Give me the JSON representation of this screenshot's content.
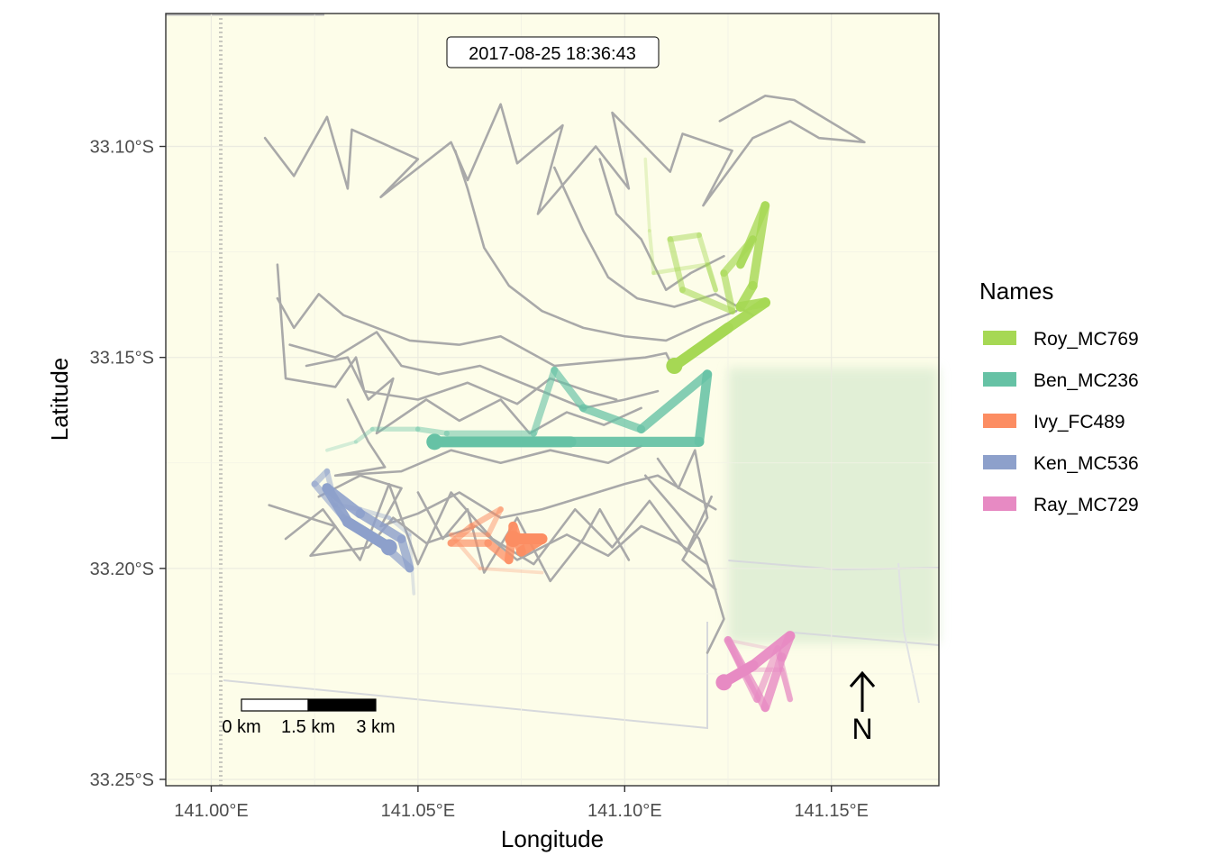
{
  "chart_data": {
    "type": "map-tracks",
    "title": "",
    "timestamp": "2017-08-25 18:36:43",
    "xlabel": "Longitude",
    "ylabel": "Latitude",
    "xlim": [
      140.989,
      141.176
    ],
    "ylim": [
      -33.2515,
      -33.0685
    ],
    "x_ticks": [
      {
        "value": 141.0,
        "label": "141.00°E"
      },
      {
        "value": 141.05,
        "label": "141.05°E"
      },
      {
        "value": 141.1,
        "label": "141.10°E"
      },
      {
        "value": 141.15,
        "label": "141.15°E"
      }
    ],
    "y_ticks": [
      {
        "value": -33.1,
        "label": "33.10°S"
      },
      {
        "value": -33.15,
        "label": "33.15°S"
      },
      {
        "value": -33.2,
        "label": "33.20°S"
      },
      {
        "value": -33.25,
        "label": "33.25°S"
      }
    ],
    "grid": true,
    "legend": {
      "title": "Names",
      "placement": "right",
      "items": [
        {
          "name": "Roy_MC769",
          "color": "#a6d854"
        },
        {
          "name": "Ben_MC236",
          "color": "#66c2a5"
        },
        {
          "name": "Ivy_FC489",
          "color": "#fc8d62"
        },
        {
          "name": "Ken_MC536",
          "color": "#8da0cb"
        },
        {
          "name": "Ray_MC729",
          "color": "#e78ac3"
        }
      ]
    },
    "scalebar": {
      "labels": [
        "0 km",
        "1.5 km",
        "3 km"
      ]
    },
    "north_arrow": "N",
    "background_color": "#fdfde9",
    "trail_color": "#a9a9a9",
    "trails": [
      [
        [
          141.013,
          -33.098
        ],
        [
          141.02,
          -33.107
        ],
        [
          141.028,
          -33.093
        ],
        [
          141.033,
          -33.11
        ],
        [
          141.034,
          -33.096
        ],
        [
          141.05,
          -33.103
        ],
        [
          141.041,
          -33.112
        ],
        [
          141.058,
          -33.099
        ],
        [
          141.062,
          -33.108
        ],
        [
          141.07,
          -33.09
        ],
        [
          141.074,
          -33.104
        ],
        [
          141.085,
          -33.095
        ],
        [
          141.079,
          -33.116
        ],
        [
          141.093,
          -33.1
        ],
        [
          141.101,
          -33.11
        ],
        [
          141.097,
          -33.092
        ],
        [
          141.111,
          -33.106
        ],
        [
          141.114,
          -33.097
        ],
        [
          141.126,
          -33.101
        ],
        [
          141.119,
          -33.114
        ],
        [
          141.131,
          -33.098
        ],
        [
          141.14,
          -33.094
        ],
        [
          141.147,
          -33.098
        ],
        [
          141.158,
          -33.099
        ],
        [
          141.141,
          -33.089
        ],
        [
          141.134,
          -33.088
        ],
        [
          141.123,
          -33.094
        ]
      ],
      [
        [
          141.016,
          -33.136
        ],
        [
          141.02,
          -33.143
        ],
        [
          141.026,
          -33.135
        ],
        [
          141.032,
          -33.14
        ],
        [
          141.048,
          -33.146
        ],
        [
          141.06,
          -33.147
        ],
        [
          141.07,
          -33.145
        ],
        [
          141.083,
          -33.152
        ],
        [
          141.094,
          -33.151
        ],
        [
          141.105,
          -33.15
        ],
        [
          141.11,
          -33.149
        ],
        [
          141.112,
          -33.153
        ]
      ],
      [
        [
          141.019,
          -33.147
        ],
        [
          141.03,
          -33.15
        ],
        [
          141.04,
          -33.144
        ],
        [
          141.046,
          -33.152
        ],
        [
          141.055,
          -33.154
        ],
        [
          141.065,
          -33.152
        ],
        [
          141.08,
          -33.158
        ],
        [
          141.09,
          -33.162
        ],
        [
          141.1,
          -33.16
        ],
        [
          141.108,
          -33.158
        ]
      ],
      [
        [
          141.023,
          -33.152
        ],
        [
          141.033,
          -33.15
        ],
        [
          141.038,
          -33.16
        ],
        [
          141.044,
          -33.155
        ],
        [
          141.04,
          -33.168
        ],
        [
          141.052,
          -33.16
        ],
        [
          141.06,
          -33.165
        ],
        [
          141.07,
          -33.16
        ],
        [
          141.077,
          -33.168
        ],
        [
          141.086,
          -33.163
        ],
        [
          141.095,
          -33.166
        ],
        [
          141.104,
          -33.162
        ]
      ],
      [
        [
          141.016,
          -33.128
        ],
        [
          141.018,
          -33.155
        ],
        [
          141.03,
          -33.157
        ],
        [
          141.035,
          -33.15
        ],
        [
          141.037,
          -33.158
        ],
        [
          141.05,
          -33.16
        ],
        [
          141.062,
          -33.156
        ],
        [
          141.074,
          -33.161
        ],
        [
          141.082,
          -33.155
        ],
        [
          141.091,
          -33.158
        ],
        [
          141.098,
          -33.16
        ]
      ],
      [
        [
          141.059,
          -33.101
        ],
        [
          141.062,
          -33.11
        ],
        [
          141.066,
          -33.124
        ],
        [
          141.072,
          -33.133
        ],
        [
          141.08,
          -33.139
        ],
        [
          141.09,
          -33.143
        ],
        [
          141.1,
          -33.145
        ],
        [
          141.11,
          -33.146
        ],
        [
          141.119,
          -33.142
        ],
        [
          141.127,
          -33.139
        ]
      ],
      [
        [
          141.083,
          -33.105
        ],
        [
          141.09,
          -33.12
        ],
        [
          141.096,
          -33.131
        ],
        [
          141.103,
          -33.136
        ],
        [
          141.112,
          -33.138
        ],
        [
          141.122,
          -33.135
        ],
        [
          141.131,
          -33.14
        ]
      ],
      [
        [
          141.094,
          -33.103
        ],
        [
          141.098,
          -33.116
        ],
        [
          141.104,
          -33.122
        ],
        [
          141.11,
          -33.134
        ],
        [
          141.116,
          -33.13
        ],
        [
          141.124,
          -33.126
        ]
      ],
      [
        [
          141.026,
          -33.183
        ],
        [
          141.036,
          -33.178
        ],
        [
          141.046,
          -33.181
        ],
        [
          141.041,
          -33.19
        ],
        [
          141.05,
          -33.187
        ],
        [
          141.06,
          -33.182
        ],
        [
          141.07,
          -33.188
        ],
        [
          141.08,
          -33.186
        ],
        [
          141.09,
          -33.183
        ],
        [
          141.1,
          -33.18
        ],
        [
          141.108,
          -33.178
        ],
        [
          141.115,
          -33.182
        ],
        [
          141.122,
          -33.186
        ]
      ],
      [
        [
          141.014,
          -33.185
        ],
        [
          141.03,
          -33.19
        ],
        [
          141.024,
          -33.197
        ],
        [
          141.038,
          -33.195
        ],
        [
          141.044,
          -33.188
        ],
        [
          141.052,
          -33.194
        ],
        [
          141.064,
          -33.19
        ],
        [
          141.074,
          -33.198
        ],
        [
          141.086,
          -33.192
        ],
        [
          141.096,
          -33.197
        ],
        [
          141.104,
          -33.19
        ],
        [
          141.113,
          -33.194
        ],
        [
          141.12,
          -33.199
        ]
      ],
      [
        [
          141.018,
          -33.193
        ],
        [
          141.027,
          -33.186
        ],
        [
          141.036,
          -33.198
        ],
        [
          141.043,
          -33.18
        ],
        [
          141.05,
          -33.199
        ],
        [
          141.058,
          -33.182
        ],
        [
          141.068,
          -33.193
        ],
        [
          141.078,
          -33.199
        ],
        [
          141.088,
          -33.186
        ],
        [
          141.097,
          -33.195
        ],
        [
          141.106,
          -33.184
        ],
        [
          141.115,
          -33.196
        ],
        [
          141.121,
          -33.183
        ]
      ],
      [
        [
          141.105,
          -33.178
        ],
        [
          141.112,
          -33.186
        ],
        [
          141.118,
          -33.193
        ],
        [
          141.121,
          -33.202
        ],
        [
          141.124,
          -33.212
        ],
        [
          141.12,
          -33.22
        ]
      ],
      [
        [
          141.108,
          -33.174
        ],
        [
          141.113,
          -33.181
        ],
        [
          141.117,
          -33.172
        ],
        [
          141.12,
          -33.188
        ],
        [
          141.114,
          -33.198
        ],
        [
          141.122,
          -33.205
        ]
      ],
      [
        [
          141.033,
          -33.16
        ],
        [
          141.038,
          -33.17
        ],
        [
          141.042,
          -33.176
        ],
        [
          141.03,
          -33.178
        ],
        [
          141.046,
          -33.177
        ],
        [
          141.058,
          -33.172
        ],
        [
          141.07,
          -33.175
        ],
        [
          141.082,
          -33.172
        ],
        [
          141.096,
          -33.175
        ],
        [
          141.104,
          -33.171
        ]
      ],
      [
        [
          141.05,
          -33.182
        ],
        [
          141.056,
          -33.193
        ],
        [
          141.062,
          -33.186
        ],
        [
          141.066,
          -33.201
        ],
        [
          141.074,
          -33.188
        ],
        [
          141.082,
          -33.203
        ],
        [
          141.09,
          -33.193
        ],
        [
          141.094,
          -33.186
        ],
        [
          141.101,
          -33.198
        ]
      ]
    ],
    "tracks": [
      {
        "name": "Roy_MC769",
        "color": "#a6d854",
        "points": [
          [
            141.105,
            -33.103
          ],
          [
            141.106,
            -33.12
          ],
          [
            141.107,
            -33.13
          ],
          [
            141.12,
            -33.128
          ],
          [
            141.122,
            -33.134
          ],
          [
            141.118,
            -33.121
          ],
          [
            141.111,
            -33.122
          ],
          [
            141.114,
            -33.134
          ],
          [
            141.126,
            -33.139
          ],
          [
            141.124,
            -33.13
          ],
          [
            141.131,
            -33.122
          ],
          [
            141.128,
            -33.128
          ],
          [
            141.134,
            -33.114
          ],
          [
            141.131,
            -33.133
          ],
          [
            141.128,
            -33.138
          ],
          [
            141.134,
            -33.137
          ],
          [
            141.125,
            -33.143
          ],
          [
            141.112,
            -33.152
          ]
        ]
      },
      {
        "name": "Ben_MC236",
        "color": "#66c2a5",
        "points": [
          [
            141.028,
            -33.172
          ],
          [
            141.035,
            -33.17
          ],
          [
            141.039,
            -33.167
          ],
          [
            141.05,
            -33.167
          ],
          [
            141.057,
            -33.168
          ],
          [
            141.078,
            -33.168
          ],
          [
            141.083,
            -33.153
          ],
          [
            141.09,
            -33.162
          ],
          [
            141.104,
            -33.167
          ],
          [
            141.12,
            -33.154
          ],
          [
            141.118,
            -33.17
          ],
          [
            141.087,
            -33.17
          ],
          [
            141.054,
            -33.17
          ]
        ]
      },
      {
        "name": "Ivy_FC489",
        "color": "#fc8d62",
        "points": [
          [
            141.08,
            -33.201
          ],
          [
            141.065,
            -33.2
          ],
          [
            141.058,
            -33.192
          ],
          [
            141.067,
            -33.192
          ],
          [
            141.07,
            -33.186
          ],
          [
            141.063,
            -33.19
          ],
          [
            141.058,
            -33.194
          ],
          [
            141.067,
            -33.194
          ],
          [
            141.072,
            -33.198
          ],
          [
            141.073,
            -33.19
          ],
          [
            141.075,
            -33.196
          ],
          [
            141.08,
            -33.193
          ],
          [
            141.073,
            -33.193
          ]
        ]
      },
      {
        "name": "Ken_MC536",
        "color": "#8da0cb",
        "points": [
          [
            141.049,
            -33.206
          ],
          [
            141.048,
            -33.192
          ],
          [
            141.043,
            -33.188
          ],
          [
            141.036,
            -33.186
          ],
          [
            141.03,
            -33.185
          ],
          [
            141.028,
            -33.177
          ],
          [
            141.025,
            -33.18
          ],
          [
            141.032,
            -33.188
          ],
          [
            141.04,
            -33.193
          ],
          [
            141.048,
            -33.2
          ],
          [
            141.046,
            -33.193
          ],
          [
            141.036,
            -33.187
          ],
          [
            141.028,
            -33.181
          ],
          [
            141.033,
            -33.189
          ],
          [
            141.043,
            -33.195
          ]
        ]
      },
      {
        "name": "Ray_MC729",
        "color": "#e78ac3",
        "points": [
          [
            141.135,
            -33.219
          ],
          [
            141.125,
            -33.217
          ],
          [
            141.128,
            -33.224
          ],
          [
            141.138,
            -33.224
          ],
          [
            141.14,
            -33.231
          ],
          [
            141.137,
            -33.219
          ],
          [
            141.132,
            -33.231
          ],
          [
            141.125,
            -33.217
          ],
          [
            141.134,
            -33.233
          ],
          [
            141.138,
            -33.221
          ],
          [
            141.14,
            -33.216
          ],
          [
            141.131,
            -33.223
          ],
          [
            141.124,
            -33.227
          ]
        ]
      }
    ]
  }
}
